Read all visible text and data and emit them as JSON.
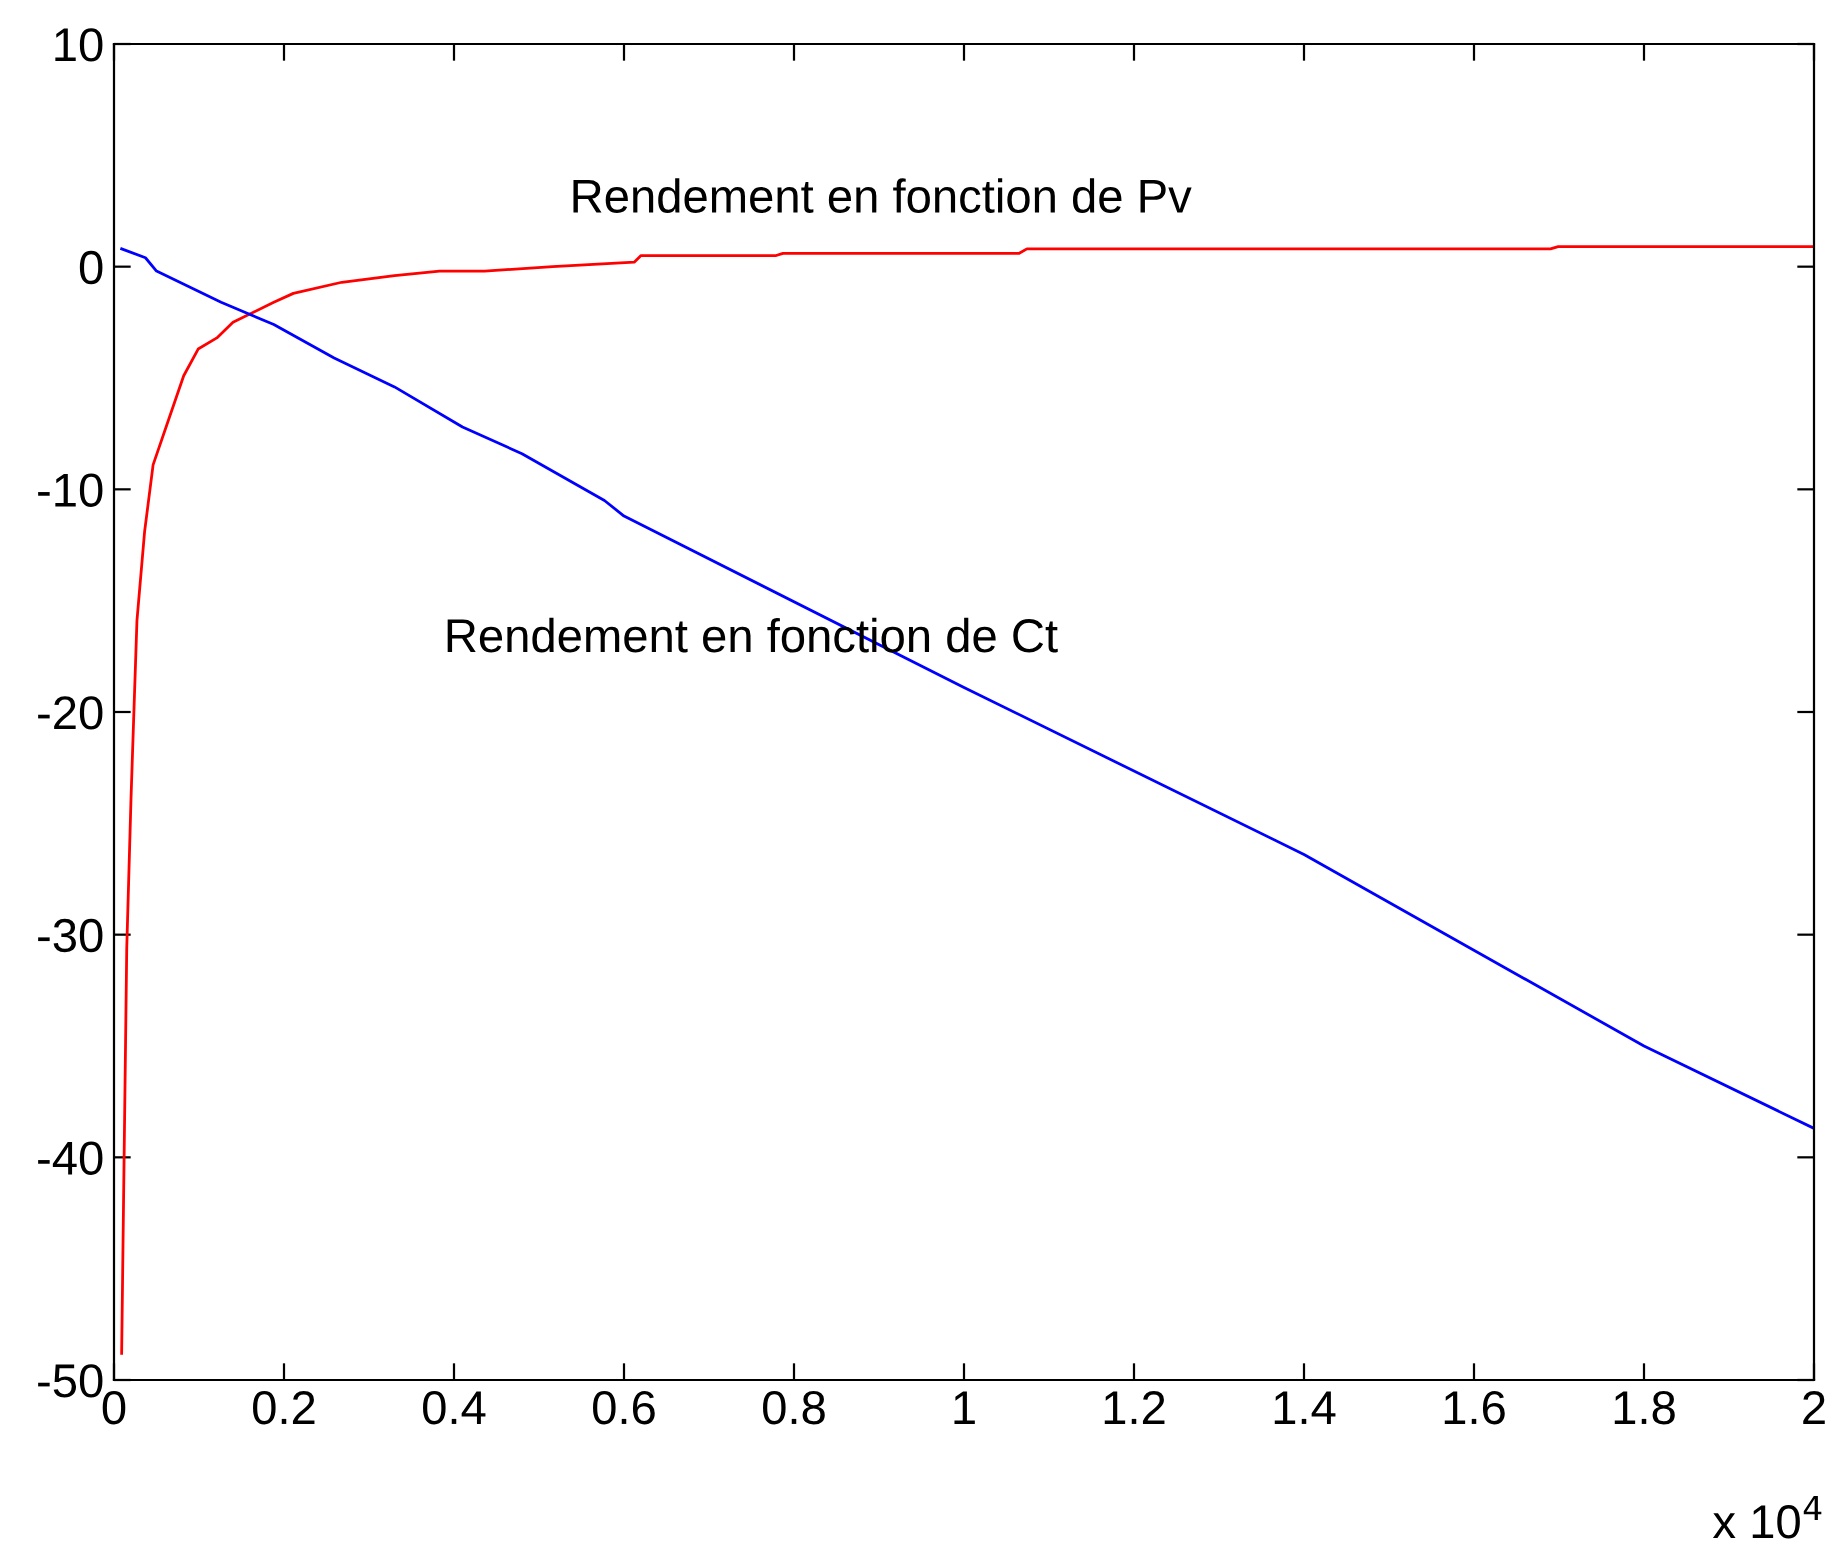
{
  "chart_data": {
    "type": "line",
    "series": [
      {
        "color": "#ff0000",
        "x": [
          0.009,
          0.015,
          0.02,
          0.027,
          0.036,
          0.046,
          0.064,
          0.082,
          0.099,
          0.121,
          0.14,
          0.188,
          0.211,
          0.268,
          0.33,
          0.383,
          0.436,
          0.516,
          0.612,
          0.62,
          0.779,
          0.787,
          1.065,
          1.074,
          1.69,
          1.699,
          2.0
        ],
        "values": [
          -48.8,
          -30.6,
          -23.9,
          -15.9,
          -11.9,
          -8.9,
          -6.9,
          -4.9,
          -3.7,
          -3.2,
          -2.5,
          -1.6,
          -1.2,
          -0.7,
          -0.4,
          -0.2,
          -0.2,
          0.0,
          0.2,
          0.5,
          0.5,
          0.6,
          0.6,
          0.8,
          0.8,
          0.9,
          0.9
        ]
      },
      {
        "color": "#0000ff",
        "x": [
          0.009,
          0.037,
          0.05,
          0.126,
          0.188,
          0.259,
          0.33,
          0.41,
          0.48,
          0.577,
          0.6,
          1.0,
          1.4,
          1.8,
          2.0
        ],
        "values": [
          0.8,
          0.4,
          -0.2,
          -1.6,
          -2.6,
          -4.1,
          -5.4,
          -7.2,
          -8.4,
          -10.5,
          -11.2,
          -18.9,
          -26.4,
          -35.0,
          -38.7
        ]
      }
    ],
    "annotations": [
      "Rendement en fonction de Pv",
      "Rendement en fonction de Ct",
      "x 10$^{4}$"
    ],
    "xlim": [
      0,
      2
    ],
    "ylim": [
      -50,
      10
    ],
    "xticks": [
      0,
      0.2,
      0.4,
      0.6,
      0.8,
      1,
      1.2,
      1.4,
      1.6,
      1.8,
      2
    ],
    "yticks": [
      -50,
      -40,
      -30,
      -20,
      -10,
      0,
      10
    ],
    "grid": false,
    "legend": false
  }
}
